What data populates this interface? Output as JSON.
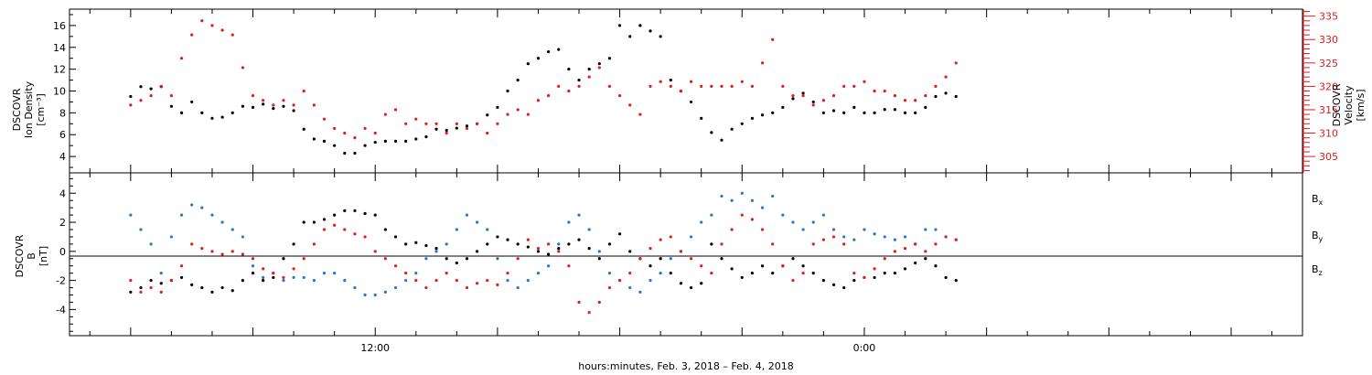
{
  "chart_data": [
    {
      "type": "scatter",
      "panel": "top",
      "ylabel_left": [
        "DSCOVR",
        "Ion Density",
        "[cm⁻³]"
      ],
      "ylabel_right": [
        "DSCOVR",
        "Velocity",
        "[km/s]"
      ],
      "yticks_left": [
        4,
        6,
        8,
        10,
        12,
        14,
        16
      ],
      "ylim_left": [
        2.5,
        17.5
      ],
      "yticks_right": [
        305,
        310,
        315,
        320,
        325,
        330,
        335
      ],
      "ylim_right": [
        301.5,
        336.5
      ],
      "grid": false,
      "series": [
        {
          "axis": "left",
          "color": "#000000",
          "x": [
            0,
            0.5,
            1,
            1.5,
            2,
            2.5,
            3,
            3.5,
            4,
            4.5,
            5,
            5.5,
            6,
            6.5,
            7,
            7.5,
            8,
            8.5,
            9,
            9.5,
            10,
            10.5,
            11,
            11.5,
            12,
            12.5,
            13,
            13.5,
            14,
            14.5,
            15,
            15.5,
            16,
            16.5,
            17,
            17.5,
            18,
            18.5,
            19,
            19.5,
            20,
            20.5,
            21,
            21.5,
            22,
            22.5,
            23,
            23.5,
            24,
            24.5,
            25,
            25.5,
            26,
            26.5,
            27,
            27.5,
            28,
            28.5,
            29,
            29.5,
            30,
            30.5,
            31,
            31.5,
            32,
            32.5,
            33,
            33.5,
            34,
            34.5,
            35,
            35.5,
            36,
            36.5,
            37,
            37.5,
            38,
            38.5,
            39,
            39.5,
            40,
            40.5
          ],
          "y": [
            9.5,
            10.4,
            10.2,
            10.4,
            8.6,
            8.0,
            9.0,
            8.0,
            7.5,
            7.6,
            8.0,
            8.6,
            8.5,
            8.8,
            8.4,
            8.6,
            8.2,
            6.5,
            5.6,
            5.4,
            5.0,
            4.3,
            4.3,
            5.0,
            5.3,
            5.4,
            5.4,
            5.4,
            5.6,
            5.8,
            6.5,
            6.4,
            6.6,
            6.8,
            7.0,
            7.8,
            8.5,
            10.0,
            11.0,
            12.5,
            13.0,
            13.6,
            13.8,
            12.0,
            11.0,
            12.0,
            12.5,
            13.0,
            16.0,
            15.0,
            16.0,
            15.5,
            15.0,
            11.0,
            10.0,
            9.0,
            7.5,
            6.2,
            5.5,
            6.5,
            7.0,
            7.5,
            7.8,
            8.0,
            8.5,
            9.3,
            9.8,
            9.0,
            8.0,
            8.2,
            8.0,
            8.5,
            8.0,
            8.0,
            8.3,
            8.3,
            8.0,
            8.0,
            8.5,
            9.5,
            9.8,
            9.5
          ]
        },
        {
          "axis": "right",
          "color": "#e41a1c",
          "x": [
            0,
            0.5,
            1,
            1.5,
            2,
            2.5,
            3,
            3.5,
            4,
            4.5,
            5,
            5.5,
            6,
            6.5,
            7,
            7.5,
            8,
            8.5,
            9,
            9.5,
            10,
            10.5,
            11,
            11.5,
            12,
            12.5,
            13,
            13.5,
            14,
            14.5,
            15,
            15.5,
            16,
            16.5,
            17,
            17.5,
            18,
            18.5,
            19,
            19.5,
            20,
            20.5,
            21,
            21.5,
            22,
            22.5,
            23,
            23.5,
            24,
            24.5,
            25,
            25.5,
            26,
            26.5,
            27,
            27.5,
            28,
            28.5,
            29,
            29.5,
            30,
            30.5,
            31,
            31.5,
            32,
            32.5,
            33,
            33.5,
            34,
            34.5,
            35,
            35.5,
            36,
            36.5,
            37,
            37.5,
            38,
            38.5,
            39,
            39.5,
            40,
            40.5
          ],
          "y": [
            316,
            317,
            318,
            320,
            318,
            326,
            331,
            334,
            333,
            332,
            331,
            324,
            318,
            317,
            316,
            317,
            316,
            319,
            316,
            313,
            311,
            310,
            309,
            311,
            310,
            314,
            315,
            312,
            313,
            312,
            312,
            310,
            312,
            311,
            312,
            310,
            312,
            314,
            315,
            314,
            317,
            318,
            320,
            319,
            320,
            322,
            324,
            320,
            318,
            316,
            314,
            320,
            321,
            320,
            319,
            321,
            320,
            320,
            320,
            320,
            321,
            320,
            325,
            330,
            320,
            318,
            318,
            316,
            317,
            318,
            320,
            320,
            321,
            319,
            319,
            318,
            317,
            317,
            318,
            320,
            322,
            325
          ]
        }
      ]
    },
    {
      "type": "scatter",
      "panel": "bottom",
      "ylabel_left": [
        "DSCOVR",
        "B",
        "[nT]"
      ],
      "yticks": [
        -4,
        -2,
        0,
        2,
        4
      ],
      "ylim": [
        -5.8,
        5.4
      ],
      "zero_line": 0,
      "grid": false,
      "x_tick_labels": [
        {
          "x": 12,
          "label": "12:00"
        },
        {
          "x": 36,
          "label": "0:00"
        }
      ],
      "xlim": [
        -3,
        57.5
      ],
      "xlabel": "hours:minutes, Feb.  3, 2018 – Feb.  4, 2018",
      "series": [
        {
          "name": "Bx",
          "color": "#000000",
          "x": [
            0,
            0.5,
            1,
            1.5,
            2,
            2.5,
            3,
            3.5,
            4,
            4.5,
            5,
            5.5,
            6,
            6.5,
            7,
            7.5,
            8,
            8.5,
            9,
            9.5,
            10,
            10.5,
            11,
            11.5,
            12,
            12.5,
            13,
            13.5,
            14,
            14.5,
            15,
            15.5,
            16,
            16.5,
            17,
            17.5,
            18,
            18.5,
            19,
            19.5,
            20,
            20.5,
            21,
            21.5,
            22,
            22.5,
            23,
            23.5,
            24,
            24.5,
            25,
            25.5,
            26,
            26.5,
            27,
            27.5,
            28,
            28.5,
            29,
            29.5,
            30,
            30.5,
            31,
            31.5,
            32,
            32.5,
            33,
            33.5,
            34,
            34.5,
            35,
            35.5,
            36,
            36.5,
            37,
            37.5,
            38,
            38.5,
            39,
            39.5,
            40,
            40.5
          ],
          "y": [
            -2.8,
            -2.5,
            -2.0,
            -2.2,
            -2.0,
            -1.8,
            -2.3,
            -2.5,
            -2.8,
            -2.5,
            -2.7,
            -2.0,
            -1.5,
            -2.0,
            -1.8,
            -0.5,
            0.5,
            2.0,
            2.0,
            2.2,
            2.5,
            2.8,
            2.8,
            2.6,
            2.5,
            1.5,
            1.0,
            0.5,
            0.6,
            0.4,
            0.2,
            -0.5,
            -0.8,
            -0.5,
            0.0,
            0.5,
            1.0,
            0.8,
            0.5,
            0.3,
            0.0,
            -0.2,
            0.2,
            0.5,
            0.8,
            0.2,
            -0.5,
            0.5,
            1.2,
            0.0,
            -0.5,
            -1.0,
            -0.5,
            -1.5,
            -2.2,
            -2.5,
            -2.2,
            0.5,
            -0.5,
            -1.2,
            -1.8,
            -1.5,
            -1.0,
            -1.5,
            -1.0,
            -0.5,
            -1.0,
            -1.5,
            -2.0,
            -2.3,
            -2.5,
            -2.0,
            -1.8,
            -1.8,
            -1.5,
            -1.5,
            -1.2,
            -0.8,
            -0.5,
            -1.0,
            -1.8,
            -2.0
          ]
        },
        {
          "name": "By",
          "color": "#1f78d1",
          "x": [
            0,
            0.5,
            1,
            1.5,
            2,
            2.5,
            3,
            3.5,
            4,
            4.5,
            5,
            5.5,
            6,
            6.5,
            7,
            7.5,
            8,
            8.5,
            9,
            9.5,
            10,
            10.5,
            11,
            11.5,
            12,
            12.5,
            13,
            13.5,
            14,
            14.5,
            15,
            15.5,
            16,
            16.5,
            17,
            17.5,
            18,
            18.5,
            19,
            19.5,
            20,
            20.5,
            21,
            21.5,
            22,
            22.5,
            23,
            23.5,
            24,
            24.5,
            25,
            25.5,
            26,
            26.5,
            27,
            27.5,
            28,
            28.5,
            29,
            29.5,
            30,
            30.5,
            31,
            31.5,
            32,
            32.5,
            33,
            33.5,
            34,
            34.5,
            35,
            35.5,
            36,
            36.5,
            37,
            37.5,
            38,
            38.5,
            39,
            39.5,
            40,
            40.5
          ],
          "y": [
            2.5,
            1.5,
            0.5,
            -1.5,
            1.0,
            2.5,
            3.2,
            3.0,
            2.5,
            2.0,
            1.5,
            1.0,
            -1.0,
            -1.8,
            -1.5,
            -2.0,
            -1.8,
            -1.8,
            -2.0,
            -1.5,
            -1.5,
            -2.0,
            -2.5,
            -3.0,
            -3.0,
            -2.8,
            -2.5,
            -2.0,
            -1.5,
            -0.5,
            0.0,
            0.5,
            1.5,
            2.5,
            2.0,
            1.5,
            -0.5,
            -2.0,
            -2.5,
            -2.0,
            -1.5,
            -1.0,
            0.5,
            2.0,
            2.5,
            1.5,
            0.0,
            -1.5,
            -2.0,
            -2.5,
            -2.8,
            -2.0,
            -1.5,
            -0.5,
            0.0,
            1.0,
            2.0,
            2.5,
            3.8,
            3.5,
            4.0,
            3.5,
            3.0,
            3.8,
            2.5,
            2.0,
            1.5,
            2.0,
            2.5,
            1.5,
            1.0,
            0.8,
            1.5,
            1.2,
            1.0,
            0.8,
            1.0,
            0.5,
            1.5,
            1.5,
            1.0,
            0.8
          ]
        },
        {
          "name": "Bz",
          "color": "#e41a1c",
          "x": [
            0,
            0.5,
            1,
            1.5,
            2,
            2.5,
            3,
            3.5,
            4,
            4.5,
            5,
            5.5,
            6,
            6.5,
            7,
            7.5,
            8,
            8.5,
            9,
            9.5,
            10,
            10.5,
            11,
            11.5,
            12,
            12.5,
            13,
            13.5,
            14,
            14.5,
            15,
            15.5,
            16,
            16.5,
            17,
            17.5,
            18,
            18.5,
            19,
            19.5,
            20,
            20.5,
            21,
            21.5,
            22,
            22.5,
            23,
            23.5,
            24,
            24.5,
            25,
            25.5,
            26,
            26.5,
            27,
            27.5,
            28,
            28.5,
            29,
            29.5,
            30,
            30.5,
            31,
            31.5,
            32,
            32.5,
            33,
            33.5,
            34,
            34.5,
            35,
            35.5,
            36,
            36.5,
            37,
            37.5,
            38,
            38.5,
            39,
            39.5,
            40,
            40.5
          ],
          "y": [
            -2.0,
            -2.8,
            -2.5,
            -2.8,
            -2.0,
            -1.0,
            0.5,
            0.2,
            0.0,
            -0.2,
            0.0,
            -0.2,
            -0.5,
            -1.2,
            -1.5,
            -1.8,
            -1.2,
            -0.5,
            0.5,
            1.5,
            1.8,
            1.5,
            1.2,
            1.0,
            0.0,
            -0.5,
            -1.0,
            -1.5,
            -2.0,
            -2.5,
            -2.0,
            -1.5,
            -2.0,
            -2.5,
            -2.2,
            -2.0,
            -2.3,
            -1.5,
            -0.5,
            0.8,
            0.2,
            0.5,
            0.0,
            -1.0,
            -3.5,
            -4.2,
            -3.5,
            -2.5,
            -2.0,
            -1.5,
            -0.5,
            0.2,
            0.8,
            1.0,
            0.0,
            -0.5,
            -1.0,
            -1.5,
            0.5,
            1.5,
            2.5,
            2.2,
            1.5,
            0.5,
            -1.0,
            -2.0,
            -1.5,
            0.5,
            0.8,
            1.0,
            0.5,
            -1.5,
            -1.8,
            -1.2,
            -0.5,
            0.0,
            0.2,
            0.5,
            0.0,
            0.5,
            1.0,
            0.8
          ]
        }
      ]
    }
  ]
}
